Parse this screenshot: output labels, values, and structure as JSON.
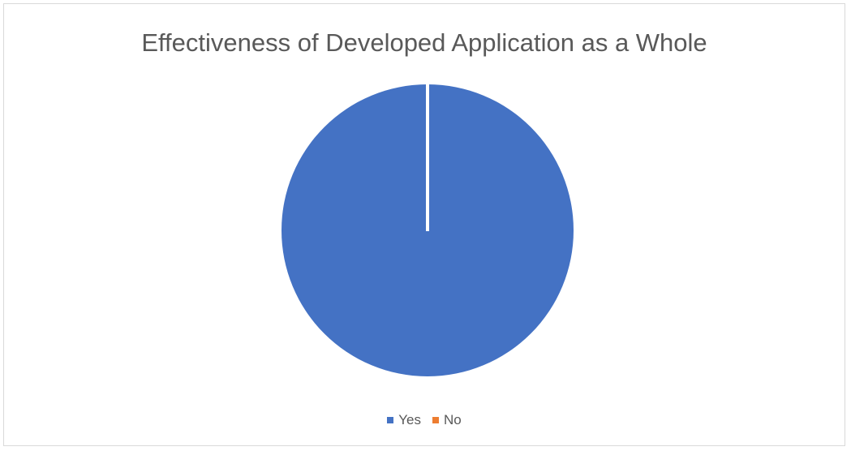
{
  "chart_data": {
    "type": "pie",
    "title": "Effectiveness of Developed Application as a Whole",
    "categories": [
      "Yes",
      "No"
    ],
    "values": [
      100,
      0
    ],
    "colors": [
      "#4472c4",
      "#ed7d31"
    ],
    "legend_position": "bottom"
  }
}
